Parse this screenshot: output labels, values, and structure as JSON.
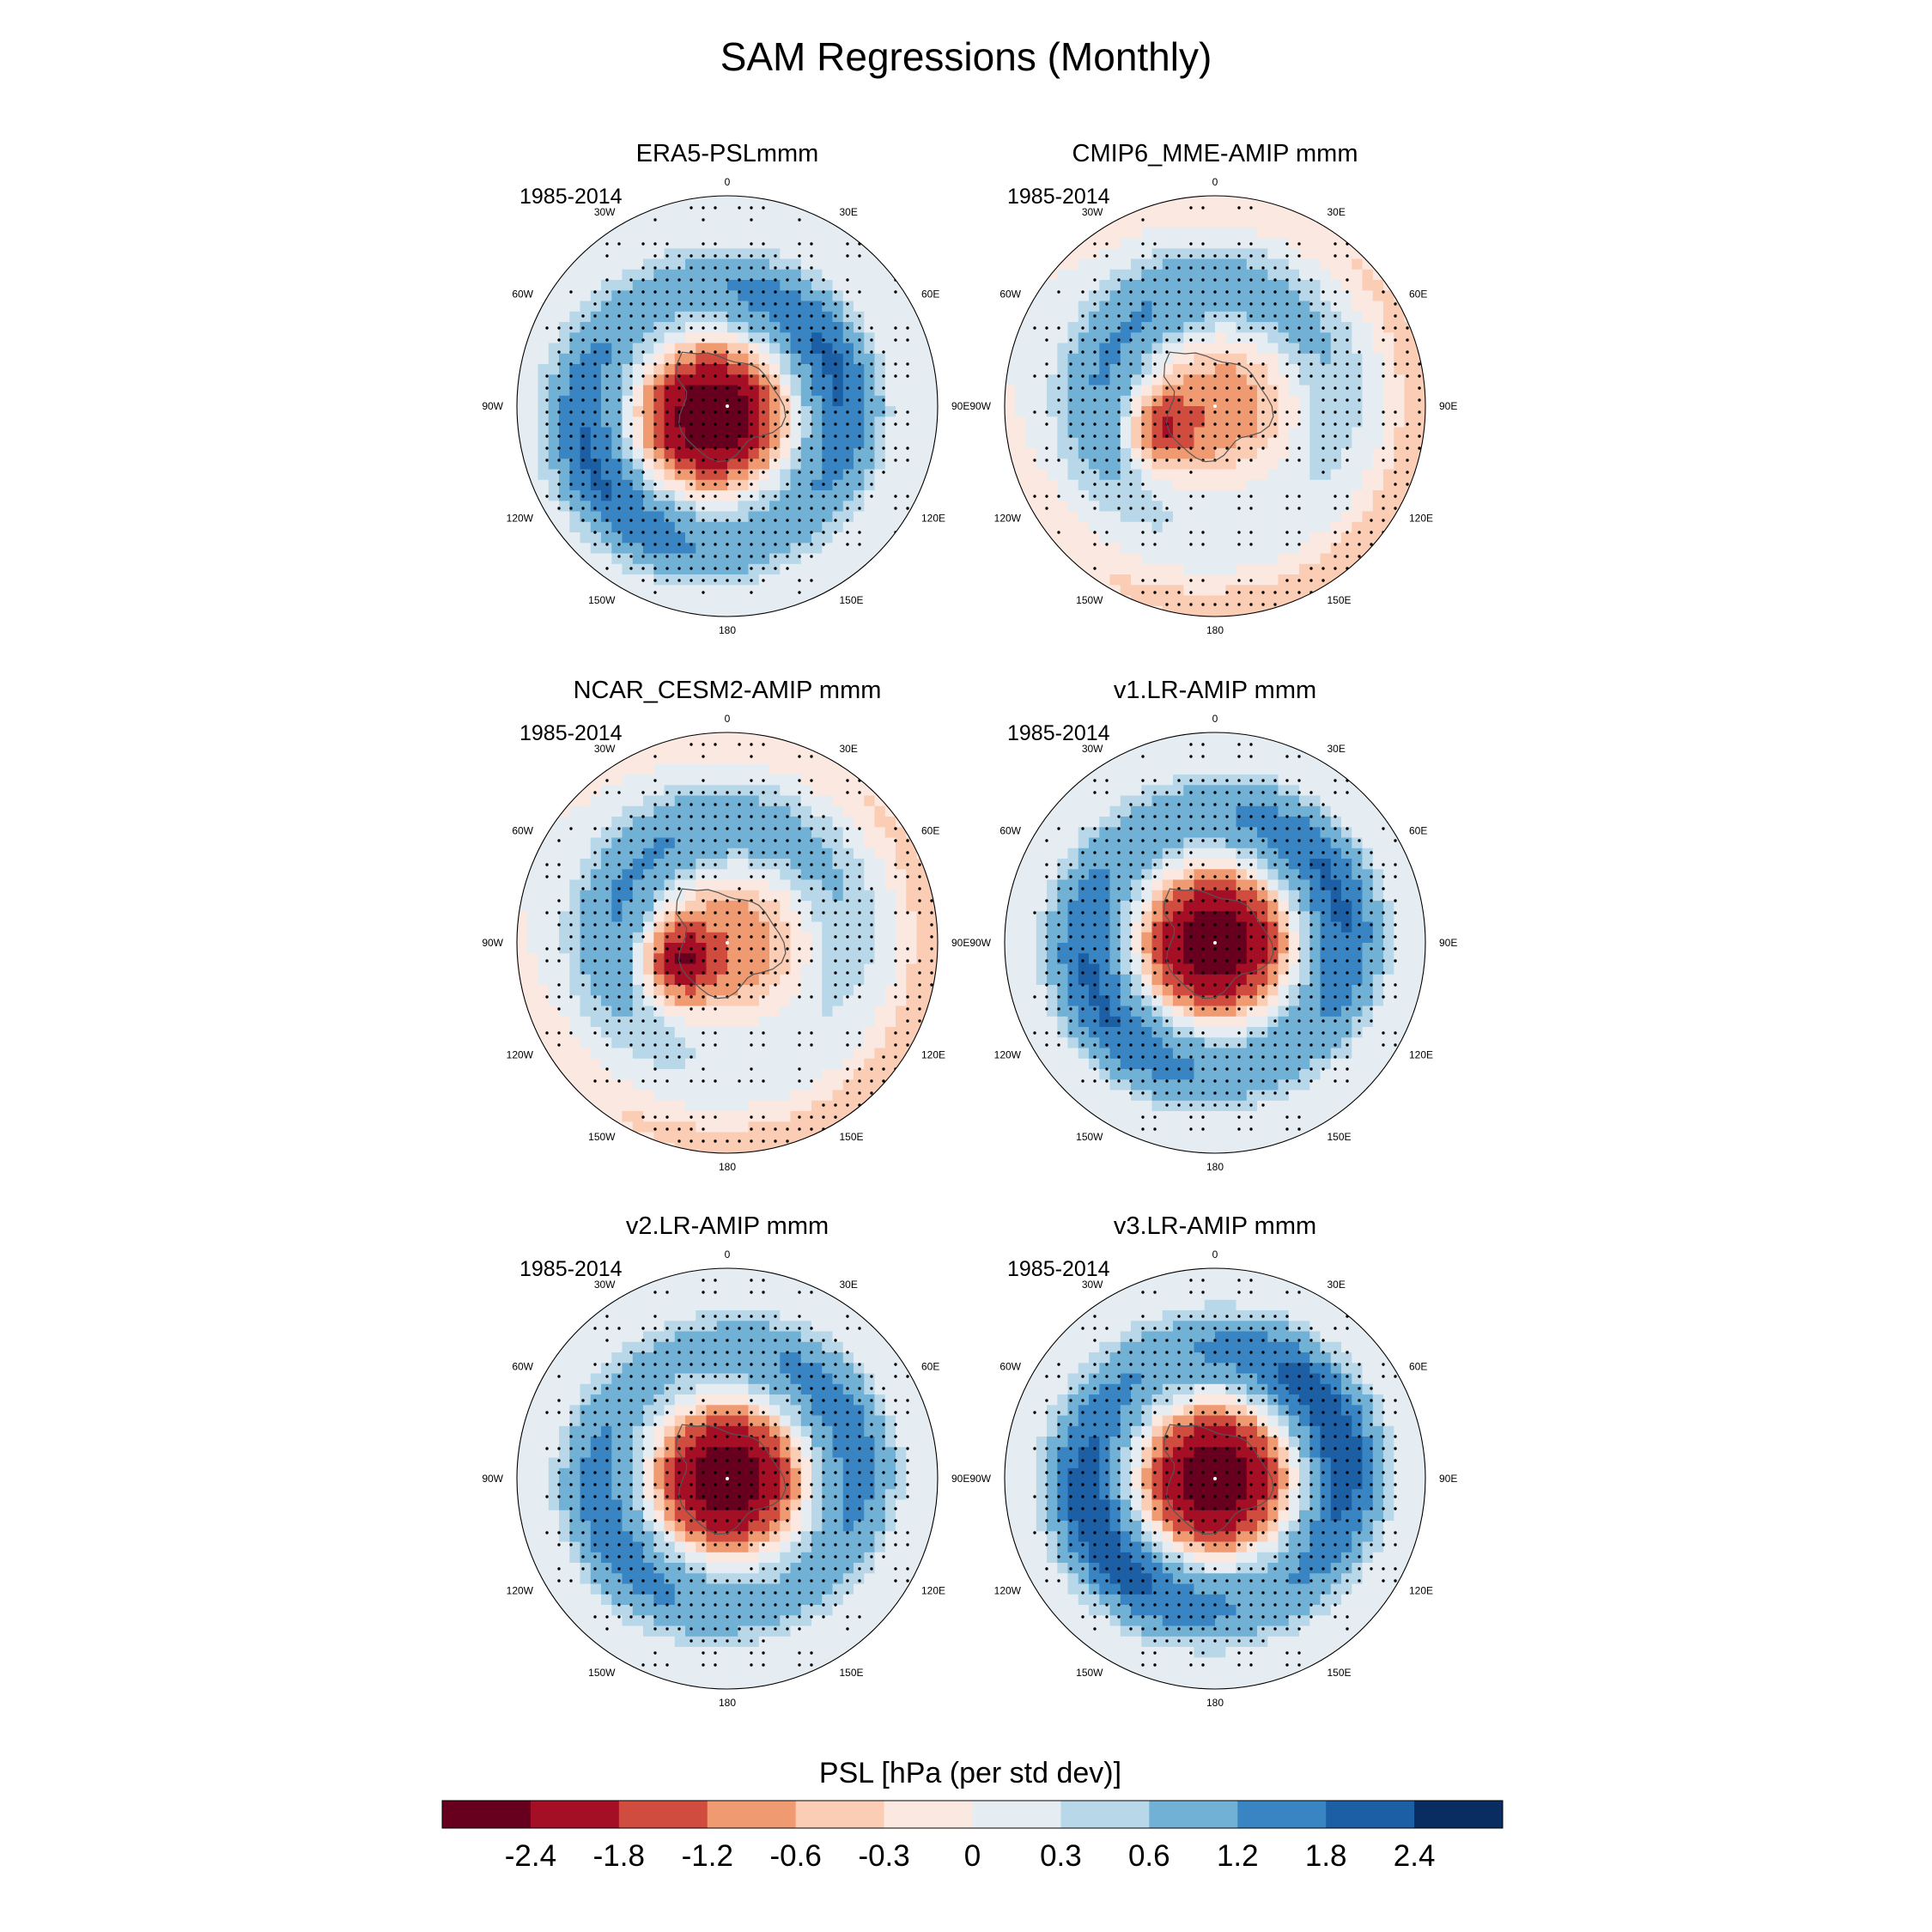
{
  "chart_data": {
    "type": "polar-contour-map",
    "title": "SAM Regressions (Monthly)",
    "region": "Southern Hemisphere polar stereographic",
    "variable": "PSL",
    "colorbar": {
      "label": "PSL [hPa (per std dev)]",
      "levels": [
        "-2.4",
        "-1.8",
        "-1.2",
        "-0.6",
        "-0.3",
        "0",
        "0.3",
        "0.6",
        "1.2",
        "1.8",
        "2.4"
      ],
      "colors": [
        "#67001f",
        "#a50f25",
        "#cf4c3f",
        "#f09a72",
        "#fbcdb4",
        "#fbe8e0",
        "#e5edf2",
        "#b8d7e8",
        "#72b1d6",
        "#3985c3",
        "#1c5fa5",
        "#0a2d61"
      ]
    },
    "longitude_labels": {
      "top": "0",
      "bottom": "180",
      "left": "90W",
      "right": "90E",
      "upper_left_1": "30W",
      "upper_left_2": "60W",
      "upper_right_1": "30E",
      "upper_right_2": "60E",
      "lower_left_1": "120W",
      "lower_left_2": "150W",
      "lower_right_1": "120E",
      "lower_right_2": "150E"
    },
    "panels": [
      {
        "name": "ERA5-PSLmmm",
        "period": "1985-2014",
        "pattern": "annular",
        "center_value": -2.6,
        "ring_peak_value": 1.9,
        "pole_shift": [
          -0.07,
          0.05
        ]
      },
      {
        "name": "CMIP6_MME-AMIP  mmm",
        "period": "1985-2014",
        "pattern": "off-center",
        "center_value": -1.6,
        "ring_peak_value": 1.3,
        "pole_shift": [
          -0.25,
          0.1
        ]
      },
      {
        "name": "NCAR_CESM2-AMIP  mmm",
        "period": "1985-2014",
        "pattern": "off-center",
        "center_value": -2.2,
        "ring_peak_value": 1.3,
        "pole_shift": [
          -0.22,
          0.08
        ]
      },
      {
        "name": "v1.LR-AMIP  mmm",
        "period": "1985-2014",
        "pattern": "annular",
        "center_value": -2.6,
        "ring_peak_value": 1.9,
        "pole_shift": [
          0.0,
          0.0
        ]
      },
      {
        "name": "v2.LR-AMIP  mmm",
        "period": "1985-2014",
        "pattern": "annular",
        "center_value": -2.6,
        "ring_peak_value": 1.6,
        "pole_shift": [
          0.0,
          0.0
        ]
      },
      {
        "name": "v3.LR-AMIP  mmm",
        "period": "1985-2014",
        "pattern": "annular",
        "center_value": -2.6,
        "ring_peak_value": 2.3,
        "pole_shift": [
          0.0,
          0.0
        ]
      }
    ]
  }
}
